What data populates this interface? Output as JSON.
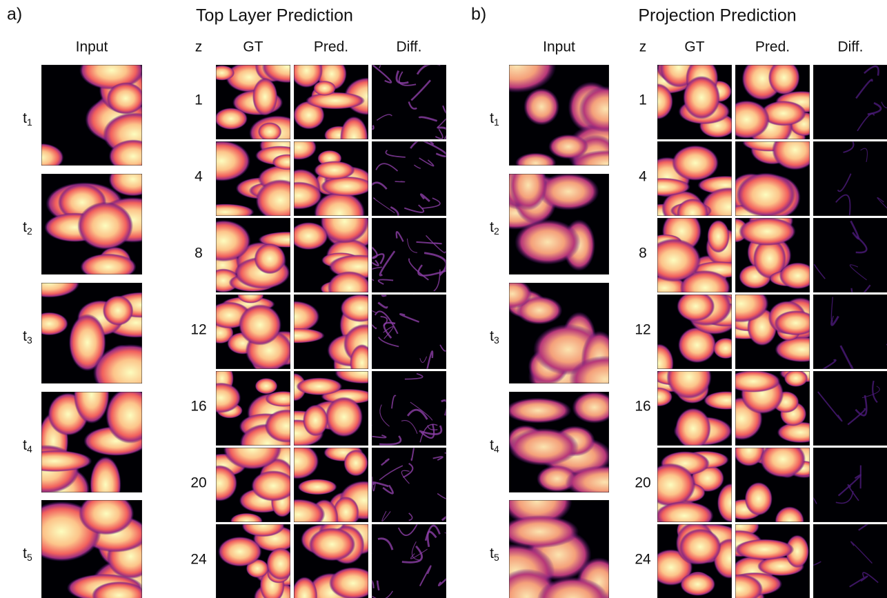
{
  "panels": [
    {
      "label": "a)",
      "title": "Top Layer Prediction",
      "input_header": "Input",
      "z_header": "z",
      "columns": [
        "GT",
        "Pred.",
        "Diff."
      ],
      "times": [
        {
          "base": "t",
          "sub": "1"
        },
        {
          "base": "t",
          "sub": "2"
        },
        {
          "base": "t",
          "sub": "3"
        },
        {
          "base": "t",
          "sub": "4"
        },
        {
          "base": "t",
          "sub": "5"
        }
      ],
      "z_values": [
        "1",
        "4",
        "8",
        "12",
        "16",
        "20",
        "24"
      ]
    },
    {
      "label": "b)",
      "title": "Projection Prediction",
      "input_header": "Input",
      "z_header": "z",
      "columns": [
        "GT",
        "Pred.",
        "Diff."
      ],
      "times": [
        {
          "base": "t",
          "sub": "1"
        },
        {
          "base": "t",
          "sub": "2"
        },
        {
          "base": "t",
          "sub": "3"
        },
        {
          "base": "t",
          "sub": "4"
        },
        {
          "base": "t",
          "sub": "5"
        }
      ],
      "z_values": [
        "1",
        "4",
        "8",
        "12",
        "16",
        "20",
        "24"
      ]
    }
  ]
}
